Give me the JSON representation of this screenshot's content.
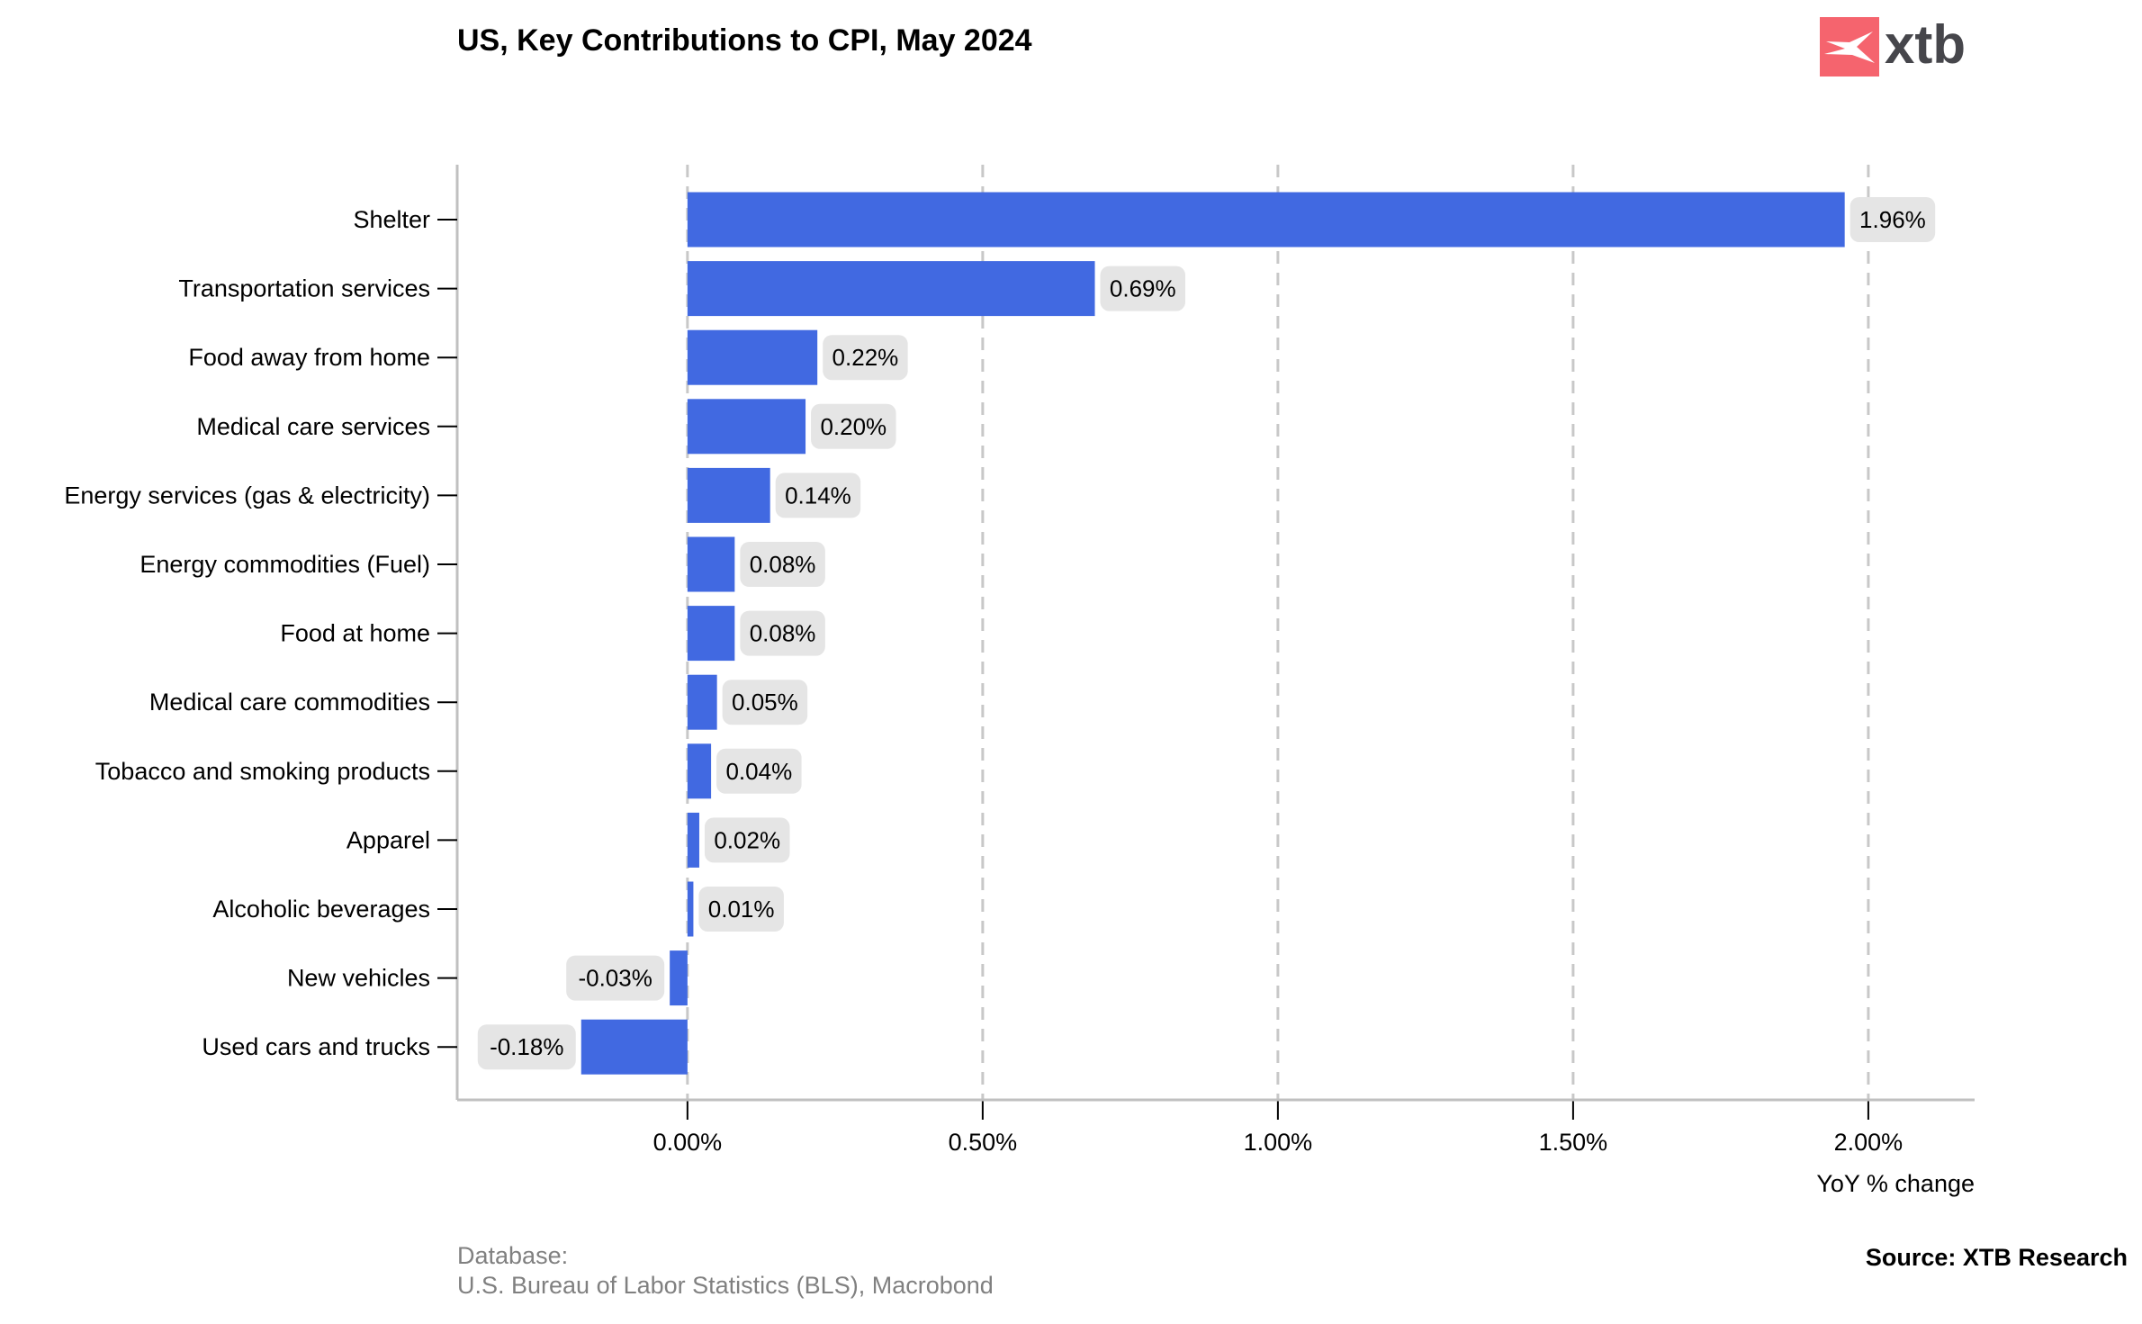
{
  "chart_data": {
    "type": "bar",
    "orientation": "horizontal",
    "title": "US, Key Contributions to CPI, May 2024",
    "xlabel": "YoY % change",
    "ylabel": "",
    "categories": [
      "Shelter",
      "Transportation services",
      "Food away from home",
      "Medical care services",
      "Energy services (gas & electricity)",
      "Energy commodities (Fuel)",
      "Food at home",
      "Medical care commodities",
      "Tobacco and smoking products",
      "Apparel",
      "Alcoholic beverages",
      "New vehicles",
      "Used cars and trucks"
    ],
    "values": [
      1.96,
      0.69,
      0.22,
      0.2,
      0.14,
      0.08,
      0.08,
      0.05,
      0.04,
      0.02,
      0.01,
      -0.03,
      -0.18
    ],
    "data_labels": [
      "1.96%",
      "0.69%",
      "0.22%",
      "0.20%",
      "0.14%",
      "0.08%",
      "0.08%",
      "0.05%",
      "0.04%",
      "0.02%",
      "0.01%",
      "-0.03%",
      "-0.18%"
    ],
    "xticks": [
      0,
      0.5,
      1.0,
      1.5,
      2.0
    ],
    "xtick_labels": [
      "0.00%",
      "0.50%",
      "1.00%",
      "1.50%",
      "2.00%"
    ],
    "xlim": [
      -0.39,
      2.18
    ],
    "grid": "vertical dashed",
    "bar_color": "#4169e1",
    "label_box_color": "#e5e5e5"
  },
  "footer": {
    "database_label": "Database:",
    "database_source": "U.S. Bureau of Labor Statistics (BLS), Macrobond",
    "source": "Source: XTB Research"
  },
  "logo": {
    "text": "xtb",
    "color": "#f5646e"
  }
}
